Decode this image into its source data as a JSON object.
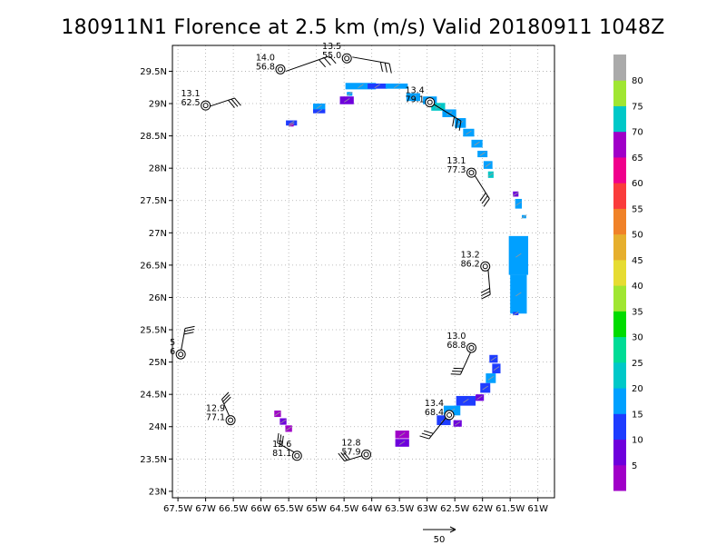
{
  "chart_data": {
    "type": "scatter",
    "title": "180911N1 Florence at 2.5 km (m/s) Valid 20180911 1048Z",
    "xlim": [
      -67.6,
      -60.7
    ],
    "ylim": [
      22.9,
      29.9
    ],
    "x_ticks": [
      {
        "v": -67.5,
        "label": "67.5W"
      },
      {
        "v": -67,
        "label": "67W"
      },
      {
        "v": -66.5,
        "label": "66.5W"
      },
      {
        "v": -66,
        "label": "66W"
      },
      {
        "v": -65.5,
        "label": "65.5W"
      },
      {
        "v": -65,
        "label": "65W"
      },
      {
        "v": -64.5,
        "label": "64.5W"
      },
      {
        "v": -64,
        "label": "64W"
      },
      {
        "v": -63.5,
        "label": "63.5W"
      },
      {
        "v": -63,
        "label": "63W"
      },
      {
        "v": -62.5,
        "label": "62.5W"
      },
      {
        "v": -62,
        "label": "62W"
      },
      {
        "v": -61.5,
        "label": "61.5W"
      },
      {
        "v": -61,
        "label": "61W"
      }
    ],
    "y_ticks": [
      {
        "v": 23,
        "label": "23N"
      },
      {
        "v": 23.5,
        "label": "23.5N"
      },
      {
        "v": 24,
        "label": "24N"
      },
      {
        "v": 24.5,
        "label": "24.5N"
      },
      {
        "v": 25,
        "label": "25N"
      },
      {
        "v": 25.5,
        "label": "25.5N"
      },
      {
        "v": 26,
        "label": "26N"
      },
      {
        "v": 26.5,
        "label": "26.5N"
      },
      {
        "v": 27,
        "label": "27N"
      },
      {
        "v": 27.5,
        "label": "27.5N"
      },
      {
        "v": 28,
        "label": "28N"
      },
      {
        "v": 28.5,
        "label": "28.5N"
      },
      {
        "v": 29,
        "label": "29N"
      },
      {
        "v": 29.5,
        "label": "29.5N"
      }
    ],
    "grid": true,
    "colorbar": {
      "labels": [
        "5",
        "10",
        "15",
        "20",
        "25",
        "30",
        "35",
        "40",
        "45",
        "50",
        "55",
        "60",
        "65",
        "70",
        "75",
        "80"
      ],
      "colors": [
        "#a000c8",
        "#6e00dc",
        "#1e3cff",
        "#00a0ff",
        "#00c8c8",
        "#00dc96",
        "#00dc00",
        "#a0e632",
        "#e6dc32",
        "#e6af2d",
        "#f08228",
        "#fa3c3c",
        "#f0008c",
        "#a000c8",
        "#00c8c8",
        "#a0e632",
        "#aaaaaa"
      ]
    },
    "stations": [
      {
        "lon": -65.65,
        "lat": 29.53,
        "label1": "14.0",
        "label2": "56.8"
      },
      {
        "lon": -64.45,
        "lat": 29.7,
        "label1": "13.5",
        "label2": "55.0"
      },
      {
        "lon": -67.0,
        "lat": 28.97,
        "label1": "13.1",
        "label2": "62.5"
      },
      {
        "lon": -62.95,
        "lat": 29.02,
        "label1": "13.4",
        "label2": "79.1"
      },
      {
        "lon": -62.2,
        "lat": 27.93,
        "label1": "13.1",
        "label2": "77.3"
      },
      {
        "lon": -61.95,
        "lat": 26.48,
        "label1": "13.2",
        "label2": "86.2"
      },
      {
        "lon": -67.45,
        "lat": 25.12,
        "label1": "5",
        "label2": "6"
      },
      {
        "lon": -62.2,
        "lat": 25.22,
        "label1": "13.0",
        "label2": "68.8"
      },
      {
        "lon": -66.55,
        "lat": 24.1,
        "label1": "12.9",
        "label2": "77.1"
      },
      {
        "lon": -62.6,
        "lat": 24.18,
        "label1": "13.4",
        "label2": "68.4"
      },
      {
        "lon": -65.35,
        "lat": 23.55,
        "label1": "12.6",
        "label2": "81.1"
      },
      {
        "lon": -64.1,
        "lat": 23.57,
        "label1": "12.8",
        "label2": "57.9"
      }
    ],
    "wind_barbs": [
      {
        "lon": -65.55,
        "lat": 29.5,
        "dx": 1.0,
        "dy": 0.35
      },
      {
        "lon": -64.35,
        "lat": 29.72,
        "dx": 0.85,
        "dy": -0.15
      },
      {
        "lon": -66.95,
        "lat": 28.95,
        "dx": 0.6,
        "dy": 0.2
      },
      {
        "lon": -62.9,
        "lat": 29.0,
        "dx": 0.65,
        "dy": -0.4
      },
      {
        "lon": -62.15,
        "lat": 27.9,
        "dx": 0.35,
        "dy": -0.55
      },
      {
        "lon": -61.9,
        "lat": 26.45,
        "dx": 0.05,
        "dy": -0.6
      },
      {
        "lon": -67.45,
        "lat": 25.15,
        "dx": 0.1,
        "dy": 0.55
      },
      {
        "lon": -62.2,
        "lat": 25.18,
        "dx": -0.25,
        "dy": -0.55
      },
      {
        "lon": -66.55,
        "lat": 24.12,
        "dx": -0.2,
        "dy": 0.45
      },
      {
        "lon": -62.65,
        "lat": 24.15,
        "dx": -0.4,
        "dy": -0.5
      },
      {
        "lon": -65.35,
        "lat": 23.58,
        "dx": -0.45,
        "dy": 0.25
      },
      {
        "lon": -64.1,
        "lat": 23.57,
        "dx": -0.5,
        "dy": -0.15
      }
    ],
    "wind_cells": [
      {
        "lon": -65.45,
        "lat": 28.7,
        "w": 0.2,
        "h": 0.08,
        "c": "#1e3cff"
      },
      {
        "lon": -65.45,
        "lat": 28.67,
        "w": 0.08,
        "h": 0.05,
        "c": "#a000c8"
      },
      {
        "lon": -64.95,
        "lat": 28.95,
        "w": 0.22,
        "h": 0.1,
        "c": "#00a0ff"
      },
      {
        "lon": -64.95,
        "lat": 28.88,
        "w": 0.22,
        "h": 0.06,
        "c": "#1e3cff"
      },
      {
        "lon": -64.45,
        "lat": 29.05,
        "w": 0.25,
        "h": 0.12,
        "c": "#6e00dc"
      },
      {
        "lon": -64.4,
        "lat": 29.15,
        "w": 0.1,
        "h": 0.06,
        "c": "#00a0ff"
      },
      {
        "lon": -64.2,
        "lat": 29.27,
        "w": 0.55,
        "h": 0.1,
        "c": "#00a0ff"
      },
      {
        "lon": -63.9,
        "lat": 29.27,
        "w": 0.35,
        "h": 0.08,
        "c": "#1e3cff"
      },
      {
        "lon": -63.55,
        "lat": 29.27,
        "w": 0.4,
        "h": 0.08,
        "c": "#00a0ff"
      },
      {
        "lon": -63.25,
        "lat": 29.1,
        "w": 0.25,
        "h": 0.12,
        "c": "#00a0ff"
      },
      {
        "lon": -62.95,
        "lat": 29.05,
        "w": 0.25,
        "h": 0.12,
        "c": "#00a0ff"
      },
      {
        "lon": -62.8,
        "lat": 28.95,
        "w": 0.25,
        "h": 0.12,
        "c": "#00c8c8"
      },
      {
        "lon": -62.6,
        "lat": 28.85,
        "w": 0.25,
        "h": 0.12,
        "c": "#00a0ff"
      },
      {
        "lon": -62.4,
        "lat": 28.7,
        "w": 0.2,
        "h": 0.15,
        "c": "#00a0ff"
      },
      {
        "lon": -62.25,
        "lat": 28.55,
        "w": 0.2,
        "h": 0.12,
        "c": "#00a0ff"
      },
      {
        "lon": -62.1,
        "lat": 28.38,
        "w": 0.2,
        "h": 0.12,
        "c": "#00a0ff"
      },
      {
        "lon": -62.0,
        "lat": 28.22,
        "w": 0.18,
        "h": 0.1,
        "c": "#00a0ff"
      },
      {
        "lon": -61.9,
        "lat": 28.05,
        "w": 0.16,
        "h": 0.12,
        "c": "#00a0ff"
      },
      {
        "lon": -61.85,
        "lat": 27.9,
        "w": 0.1,
        "h": 0.1,
        "c": "#00c8c8"
      },
      {
        "lon": -61.4,
        "lat": 27.6,
        "w": 0.1,
        "h": 0.08,
        "c": "#6e00dc"
      },
      {
        "lon": -61.35,
        "lat": 27.45,
        "w": 0.12,
        "h": 0.15,
        "c": "#00a0ff"
      },
      {
        "lon": -61.25,
        "lat": 27.25,
        "w": 0.08,
        "h": 0.05,
        "c": "#00a0ff"
      },
      {
        "lon": -61.35,
        "lat": 26.65,
        "w": 0.35,
        "h": 0.6,
        "c": "#00a0ff"
      },
      {
        "lon": -61.35,
        "lat": 26.05,
        "w": 0.3,
        "h": 0.6,
        "c": "#00a0ff"
      },
      {
        "lon": -61.4,
        "lat": 25.75,
        "w": 0.1,
        "h": 0.05,
        "c": "#1e3cff"
      },
      {
        "lon": -61.8,
        "lat": 25.05,
        "w": 0.15,
        "h": 0.12,
        "c": "#1e3cff"
      },
      {
        "lon": -61.75,
        "lat": 24.9,
        "w": 0.15,
        "h": 0.15,
        "c": "#1e3cff"
      },
      {
        "lon": -61.85,
        "lat": 24.75,
        "w": 0.18,
        "h": 0.15,
        "c": "#00a0ff"
      },
      {
        "lon": -61.95,
        "lat": 24.6,
        "w": 0.18,
        "h": 0.15,
        "c": "#1e3cff"
      },
      {
        "lon": -62.05,
        "lat": 24.45,
        "w": 0.15,
        "h": 0.1,
        "c": "#6e00dc"
      },
      {
        "lon": -62.3,
        "lat": 24.4,
        "w": 0.35,
        "h": 0.15,
        "c": "#1e3cff"
      },
      {
        "lon": -62.55,
        "lat": 24.25,
        "w": 0.3,
        "h": 0.15,
        "c": "#00a0ff"
      },
      {
        "lon": -62.7,
        "lat": 24.1,
        "w": 0.25,
        "h": 0.15,
        "c": "#1e3cff"
      },
      {
        "lon": -62.45,
        "lat": 24.05,
        "w": 0.15,
        "h": 0.1,
        "c": "#6e00dc"
      },
      {
        "lon": -63.45,
        "lat": 23.88,
        "w": 0.25,
        "h": 0.12,
        "c": "#a000c8"
      },
      {
        "lon": -63.45,
        "lat": 23.75,
        "w": 0.25,
        "h": 0.12,
        "c": "#6e00dc"
      },
      {
        "lon": -65.7,
        "lat": 24.2,
        "w": 0.12,
        "h": 0.1,
        "c": "#a000c8"
      },
      {
        "lon": -65.6,
        "lat": 24.08,
        "w": 0.12,
        "h": 0.1,
        "c": "#6e00dc"
      },
      {
        "lon": -65.5,
        "lat": 23.97,
        "w": 0.12,
        "h": 0.1,
        "c": "#a000c8"
      }
    ],
    "reference_vector_label": "50"
  }
}
